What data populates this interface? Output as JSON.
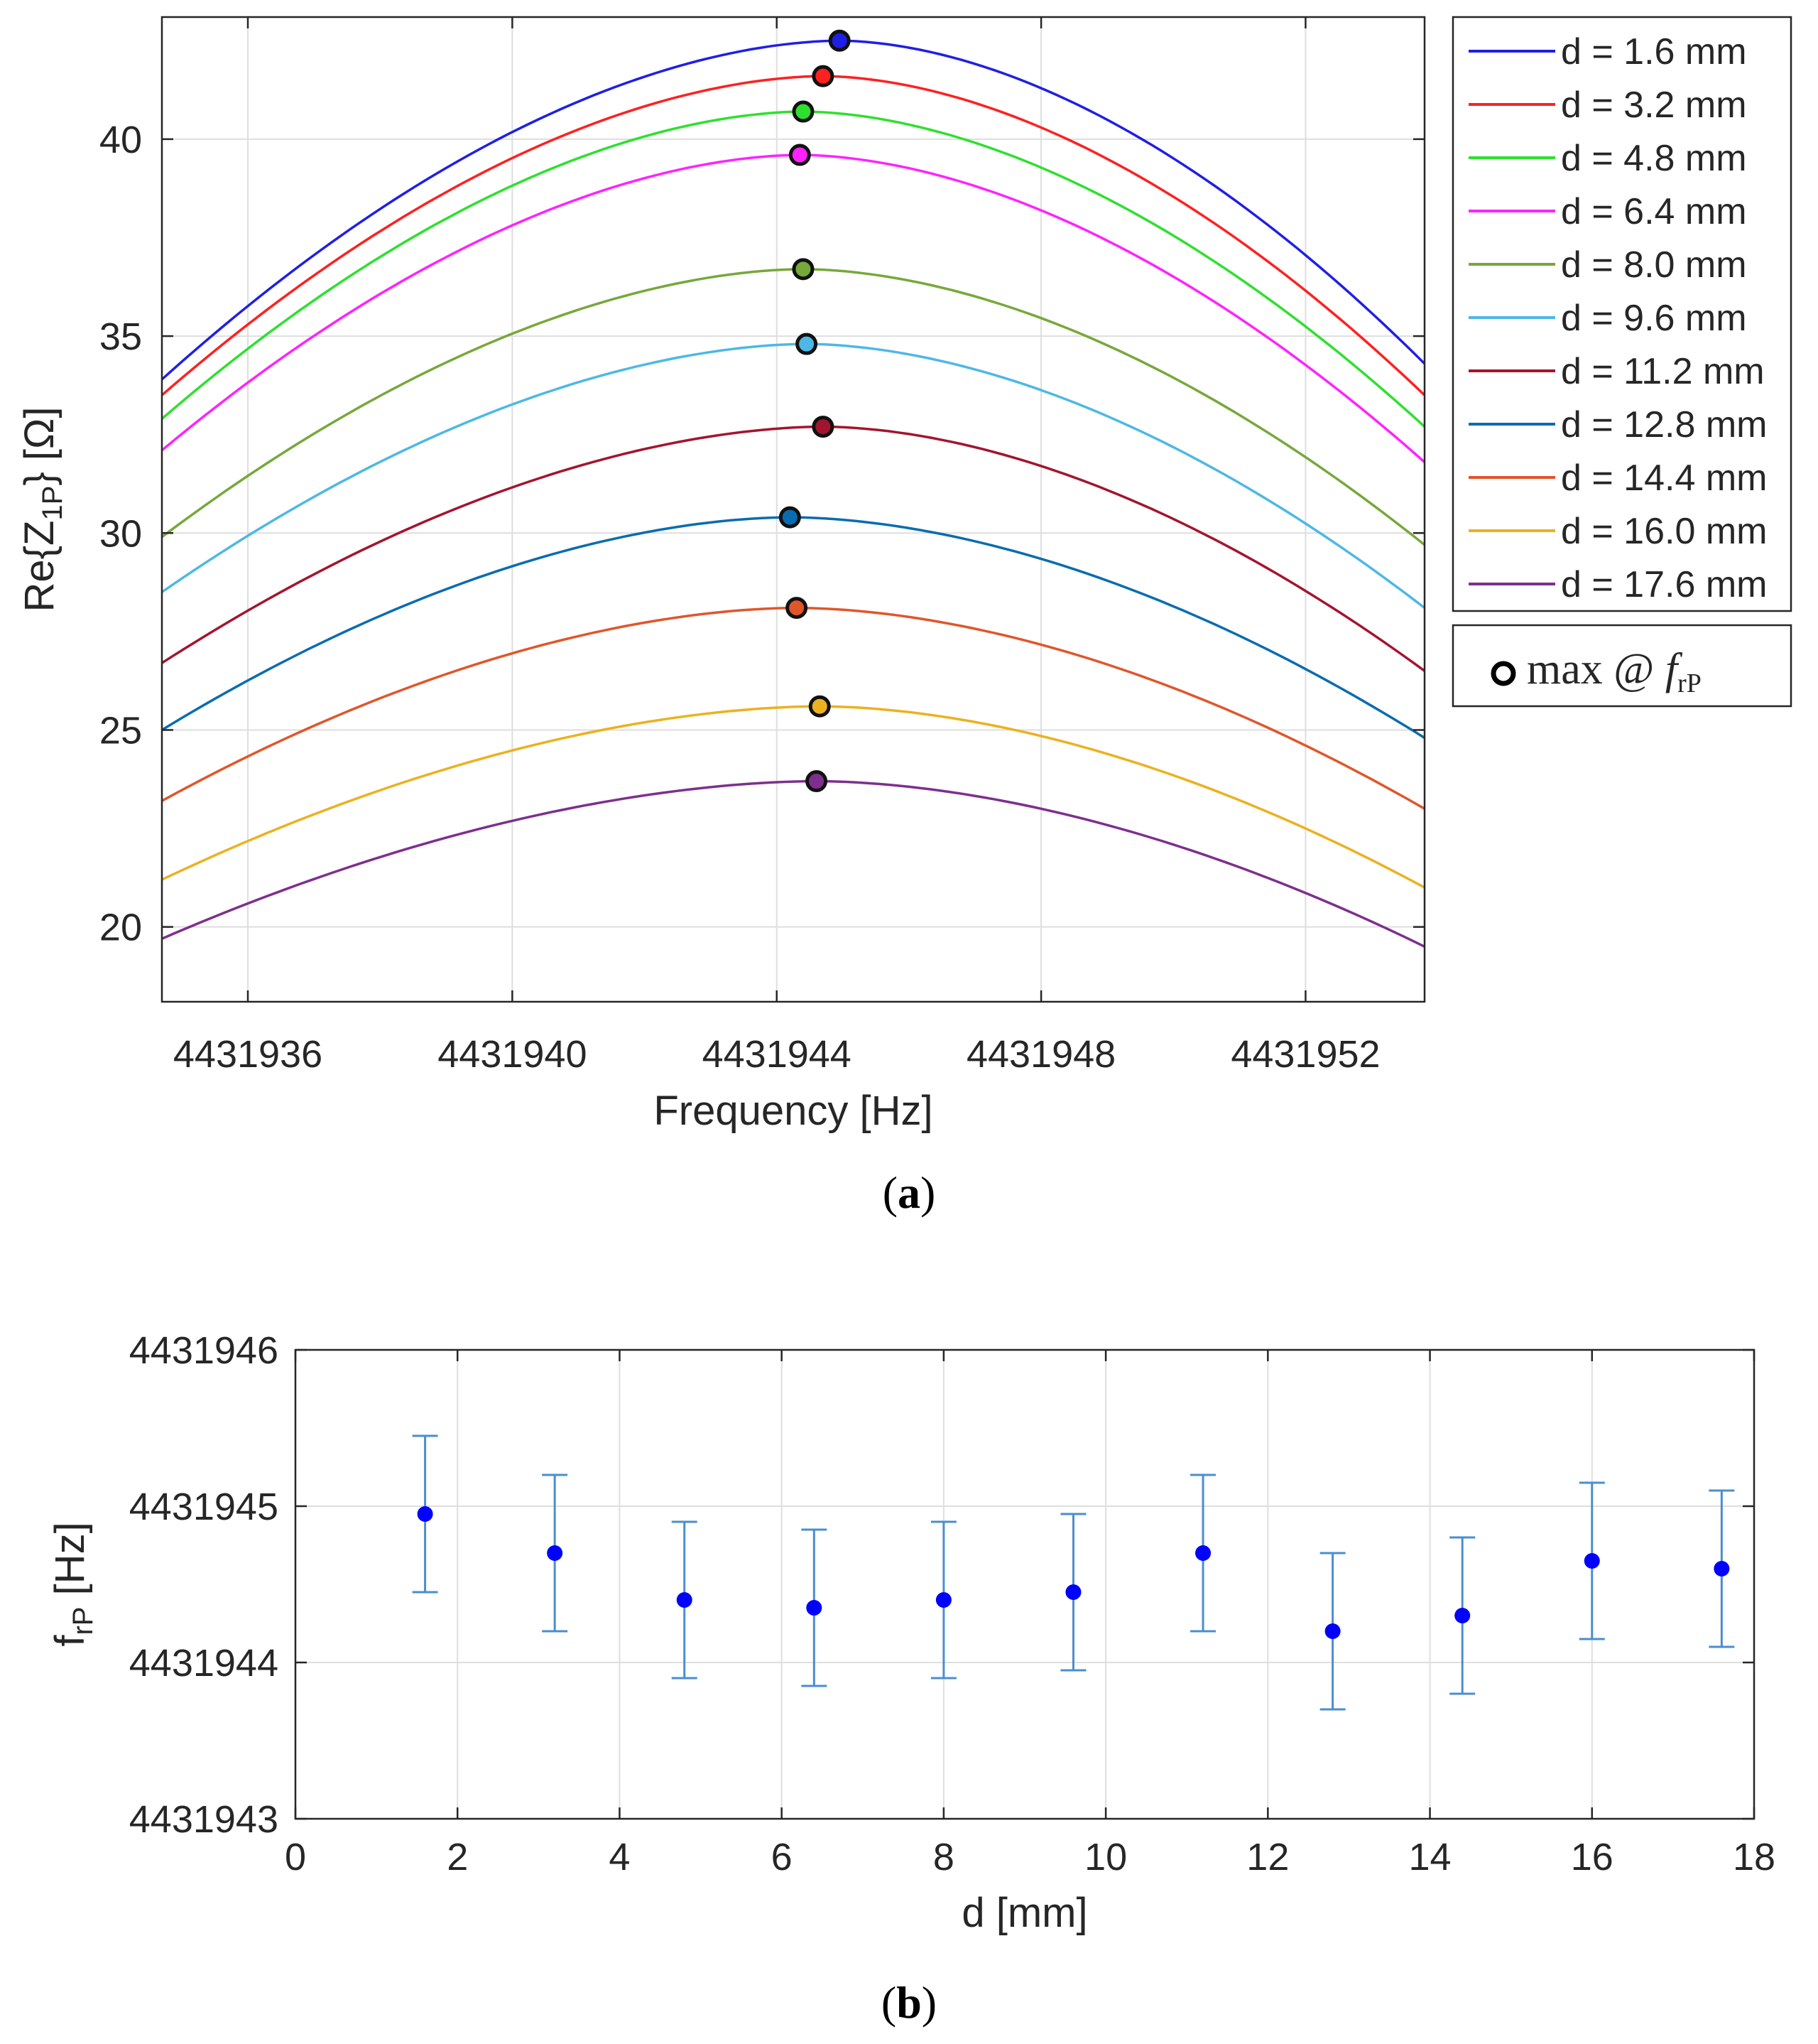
{
  "chart_data": [
    {
      "id": "a",
      "type": "line",
      "caption_letter": "a",
      "xlabel": "Frequency [Hz]",
      "ylabel_main": "Re{Z",
      "ylabel_sub": "1P",
      "ylabel_end": "} [Ω]",
      "xlim": [
        4431934.7,
        4431953.8
      ],
      "ylim": [
        18.1,
        43.1
      ],
      "xticks": [
        4431936,
        4431940,
        4431944,
        4431948,
        4431952
      ],
      "xtick_labels": [
        "4431936",
        "4431940",
        "4431944",
        "4431948",
        "4431952"
      ],
      "yticks": [
        20,
        25,
        30,
        35,
        40
      ],
      "ytick_labels": [
        "20",
        "25",
        "30",
        "35",
        "40"
      ],
      "legend_position": "outside-right",
      "marker_legend_main": "max @ ",
      "marker_legend_italic": "f",
      "marker_legend_sub": "rP",
      "series": [
        {
          "name": "d = 1.6 mm",
          "color": "#1f1fe6",
          "x": [
            4431934.7,
            4431944.95,
            4431953.8
          ],
          "y": [
            33.9,
            42.5,
            34.3
          ],
          "peak_x": 4431944.95,
          "peak_y": 42.5
        },
        {
          "name": "d = 3.2 mm",
          "color": "#ff2020",
          "x": [
            4431934.7,
            4431944.7,
            4431953.8
          ],
          "y": [
            33.5,
            41.6,
            33.5
          ],
          "peak_x": 4431944.7,
          "peak_y": 41.6
        },
        {
          "name": "d = 4.8 mm",
          "color": "#2ee02e",
          "x": [
            4431934.7,
            4431944.4,
            4431953.8
          ],
          "y": [
            32.9,
            40.7,
            32.7
          ],
          "peak_x": 4431944.4,
          "peak_y": 40.7
        },
        {
          "name": "d = 6.4 mm",
          "color": "#ff22ff",
          "x": [
            4431934.7,
            4431944.35,
            4431953.8
          ],
          "y": [
            32.1,
            39.6,
            31.8
          ],
          "peak_x": 4431944.35,
          "peak_y": 39.6
        },
        {
          "name": "d = 8.0 mm",
          "color": "#77a83a",
          "x": [
            4431934.7,
            4431944.4,
            4431953.8
          ],
          "y": [
            29.9,
            36.7,
            29.7
          ],
          "peak_x": 4431944.4,
          "peak_y": 36.7
        },
        {
          "name": "d = 9.6 mm",
          "color": "#4db8e6",
          "x": [
            4431934.7,
            4431944.45,
            4431953.8
          ],
          "y": [
            28.5,
            34.8,
            28.1
          ],
          "peak_x": 4431944.45,
          "peak_y": 34.8
        },
        {
          "name": "d = 11.2 mm",
          "color": "#a3152f",
          "x": [
            4431934.7,
            4431944.7,
            4431953.8
          ],
          "y": [
            26.7,
            32.7,
            26.5
          ],
          "peak_x": 4431944.7,
          "peak_y": 32.7
        },
        {
          "name": "d = 12.8 mm",
          "color": "#0a6cb0",
          "x": [
            4431934.7,
            4431944.2,
            4431953.8
          ],
          "y": [
            25.0,
            30.4,
            24.8
          ],
          "peak_x": 4431944.2,
          "peak_y": 30.4
        },
        {
          "name": "d = 14.4 mm",
          "color": "#e0562b",
          "x": [
            4431934.7,
            4431944.3,
            4431953.8
          ],
          "y": [
            23.2,
            28.1,
            23.0
          ],
          "peak_x": 4431944.3,
          "peak_y": 28.1
        },
        {
          "name": "d = 16.0 mm",
          "color": "#ecb120",
          "x": [
            4431934.7,
            4431944.65,
            4431953.8
          ],
          "y": [
            21.2,
            25.6,
            21.0
          ],
          "peak_x": 4431944.65,
          "peak_y": 25.6
        },
        {
          "name": "d = 17.6 mm",
          "color": "#7e2f8e",
          "x": [
            4431934.7,
            4431944.6,
            4431953.8
          ],
          "y": [
            19.7,
            23.7,
            19.5
          ],
          "peak_x": 4431944.6,
          "peak_y": 23.7
        }
      ]
    },
    {
      "id": "b",
      "type": "scatter",
      "caption_letter": "b",
      "xlabel": "d [mm]",
      "ylabel_main": "f",
      "ylabel_sub": "rP",
      "ylabel_end": " [Hz]",
      "xlim": [
        0,
        18
      ],
      "ylim": [
        4431943,
        4431946
      ],
      "xticks": [
        0,
        2,
        4,
        6,
        8,
        10,
        12,
        14,
        16,
        18
      ],
      "xtick_labels": [
        "0",
        "2",
        "4",
        "6",
        "8",
        "10",
        "12",
        "14",
        "16",
        "18"
      ],
      "yticks": [
        4431943,
        4431944,
        4431945,
        4431946
      ],
      "ytick_labels": [
        "4431943",
        "4431944",
        "4431945",
        "4431946"
      ],
      "color": "#0000ff",
      "errorbar_color": "#4a8ecf",
      "error": 0.5,
      "x": [
        1.6,
        3.2,
        4.8,
        6.4,
        8.0,
        9.6,
        11.2,
        12.8,
        14.4,
        16.0,
        17.6
      ],
      "y": [
        4431944.95,
        4431944.7,
        4431944.4,
        4431944.35,
        4431944.4,
        4431944.45,
        4431944.7,
        4431944.2,
        4431944.3,
        4431944.65,
        4431944.6
      ]
    }
  ]
}
